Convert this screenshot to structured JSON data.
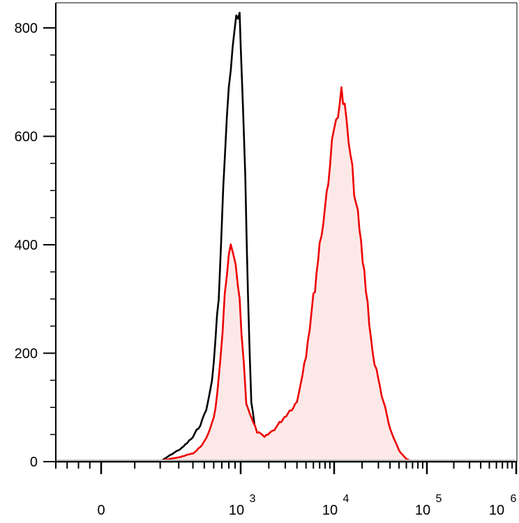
{
  "chart_data": {
    "type": "area",
    "title": "",
    "xlabel": "",
    "ylabel": "",
    "x_scale": "biexponential",
    "xlim": [
      0,
      1000000
    ],
    "ylim": [
      0,
      800
    ],
    "grid": false,
    "y_ticks": [
      "0",
      "200",
      "400",
      "600",
      "800"
    ],
    "x_ticks": [
      {
        "base": "0",
        "exp": ""
      },
      {
        "base": "10",
        "exp": "3"
      },
      {
        "base": "10",
        "exp": "4"
      },
      {
        "base": "10",
        "exp": "5"
      },
      {
        "base": "10",
        "exp": "6"
      }
    ],
    "series": [
      {
        "color": "#000000",
        "filled": false,
        "points": [
          [
            200,
            0
          ],
          [
            250,
            12
          ],
          [
            320,
            25
          ],
          [
            400,
            45
          ],
          [
            480,
            75
          ],
          [
            540,
            110
          ],
          [
            580,
            150
          ],
          [
            620,
            220
          ],
          [
            660,
            310
          ],
          [
            690,
            400
          ],
          [
            720,
            500
          ],
          [
            740,
            560
          ],
          [
            770,
            630
          ],
          [
            800,
            680
          ],
          [
            830,
            730
          ],
          [
            860,
            760
          ],
          [
            890,
            790
          ],
          [
            920,
            810
          ],
          [
            950,
            830
          ],
          [
            980,
            820
          ],
          [
            1000,
            780
          ],
          [
            1060,
            650
          ],
          [
            1120,
            520
          ],
          [
            1200,
            300
          ],
          [
            1300,
            110
          ],
          [
            1450,
            50
          ],
          [
            1700,
            25
          ],
          [
            2200,
            12
          ],
          [
            3500,
            8
          ],
          [
            6000,
            5
          ],
          [
            8000,
            0
          ]
        ]
      },
      {
        "color": "#ee0000",
        "fill": "#fde8e8",
        "filled": true,
        "points": [
          [
            180,
            0
          ],
          [
            300,
            8
          ],
          [
            400,
            15
          ],
          [
            480,
            30
          ],
          [
            540,
            50
          ],
          [
            600,
            80
          ],
          [
            640,
            120
          ],
          [
            680,
            180
          ],
          [
            710,
            240
          ],
          [
            740,
            300
          ],
          [
            770,
            340
          ],
          [
            800,
            370
          ],
          [
            830,
            400
          ],
          [
            870,
            380
          ],
          [
            910,
            350
          ],
          [
            950,
            330
          ],
          [
            980,
            300
          ],
          [
            1020,
            240
          ],
          [
            1080,
            180
          ],
          [
            1150,
            110
          ],
          [
            1300,
            80
          ],
          [
            1500,
            55
          ],
          [
            1800,
            45
          ],
          [
            2300,
            60
          ],
          [
            3200,
            90
          ],
          [
            4000,
            110
          ],
          [
            5000,
            200
          ],
          [
            6000,
            300
          ],
          [
            7000,
            400
          ],
          [
            8000,
            470
          ],
          [
            9000,
            550
          ],
          [
            10000,
            610
          ],
          [
            11000,
            650
          ],
          [
            12000,
            680
          ],
          [
            13000,
            650
          ],
          [
            15000,
            560
          ],
          [
            18000,
            450
          ],
          [
            22000,
            320
          ],
          [
            26000,
            200
          ],
          [
            30000,
            150
          ],
          [
            40000,
            60
          ],
          [
            50000,
            20
          ],
          [
            60000,
            5
          ],
          [
            70000,
            0
          ]
        ]
      }
    ]
  }
}
